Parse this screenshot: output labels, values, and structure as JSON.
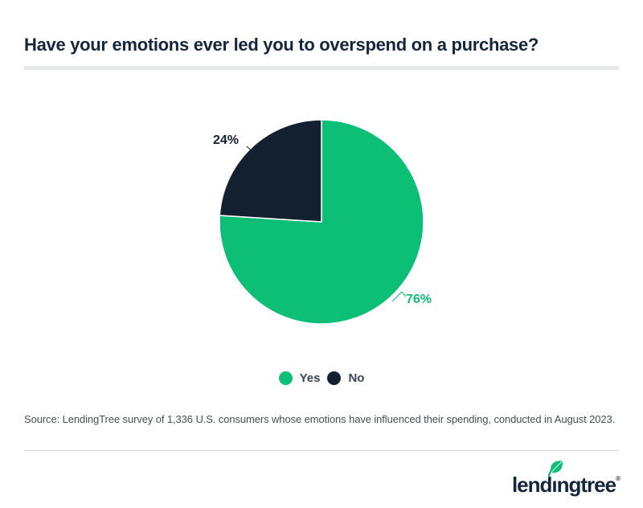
{
  "header": {
    "title": "Have your emotions ever led you to overspend on a purchase?"
  },
  "chart_data": {
    "type": "pie",
    "title": "Have your emotions ever led you to overspend on a purchase?",
    "slices": [
      {
        "label": "Yes",
        "value": 76,
        "display": "76%",
        "color": "#0dbe76"
      },
      {
        "label": "No",
        "value": 24,
        "display": "24%",
        "color": "#13202f"
      }
    ],
    "start_angle_deg": 0,
    "direction": "clockwise",
    "legend_position": "bottom",
    "data_labels_visible": true
  },
  "source": {
    "text": "Source: LendingTree survey of 1,336 U.S. consumers whose emotions have influenced their spending, conducted in August 2023."
  },
  "footer": {
    "logo_text": "lendingtree",
    "registered_mark": "®"
  },
  "colors": {
    "brand_green": "#0dbe76",
    "brand_navy": "#15263c",
    "slice_navy": "#13202f",
    "legend_text": "#3a4552",
    "source_text": "#454e57",
    "title_divider": "#e7e9e9",
    "footer_divider": "#d1d3d4"
  }
}
